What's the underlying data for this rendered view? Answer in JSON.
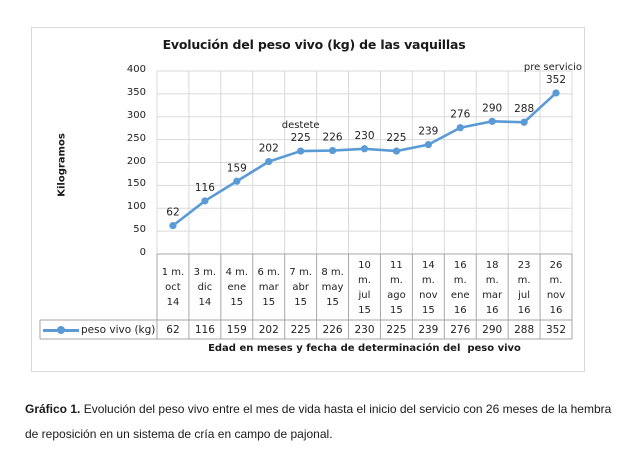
{
  "chart_data": {
    "type": "line",
    "title": "Evolución del peso vivo (kg) de las vaquillas",
    "xlabel": "Edad en meses y fecha de determinación del  peso vivo",
    "ylabel": "Kilogramos",
    "ylim": [
      0,
      400
    ],
    "yticks": [
      "0",
      "50",
      "100",
      "150",
      "200",
      "250",
      "300",
      "350",
      "400"
    ],
    "grid": true,
    "legend": "bottom-left data table",
    "categories": [
      "1 m.\noct\n14",
      "3 m.\ndic\n14",
      "4 m.\nene\n15",
      "6 m.\nmar\n15",
      "7 m.\nabr\n15",
      "8 m.\nmay\n15",
      "10\nm.\njul\n15",
      "11\nm.\nago\n15",
      "14\nm.\nnov\n15",
      "16\nm.\nene\n16",
      "18\nm.\nmar\n16",
      "23\nm.\njul\n16",
      "26\nm.\nnov\n16"
    ],
    "series": [
      {
        "name": "peso vivo (kg)",
        "color": "#5b9bd5",
        "values": [
          62,
          116,
          159,
          202,
          225,
          226,
          230,
          225,
          239,
          276,
          290,
          288,
          352
        ],
        "labels": [
          "62",
          "116",
          "159",
          "202",
          "225",
          "226",
          "230",
          "225",
          "239",
          "276",
          "290",
          "288",
          "352"
        ]
      }
    ],
    "annotations": [
      {
        "category_index": 4,
        "text": "destete"
      },
      {
        "category_index": 12,
        "text": "pre servicio"
      }
    ]
  },
  "caption": {
    "label": "Gráfico 1.",
    "text": " Evolución del peso vivo entre el mes de vida hasta el inicio del servicio con 26 meses de la hembra de reposición en un sistema de cría en campo de pajonal."
  }
}
